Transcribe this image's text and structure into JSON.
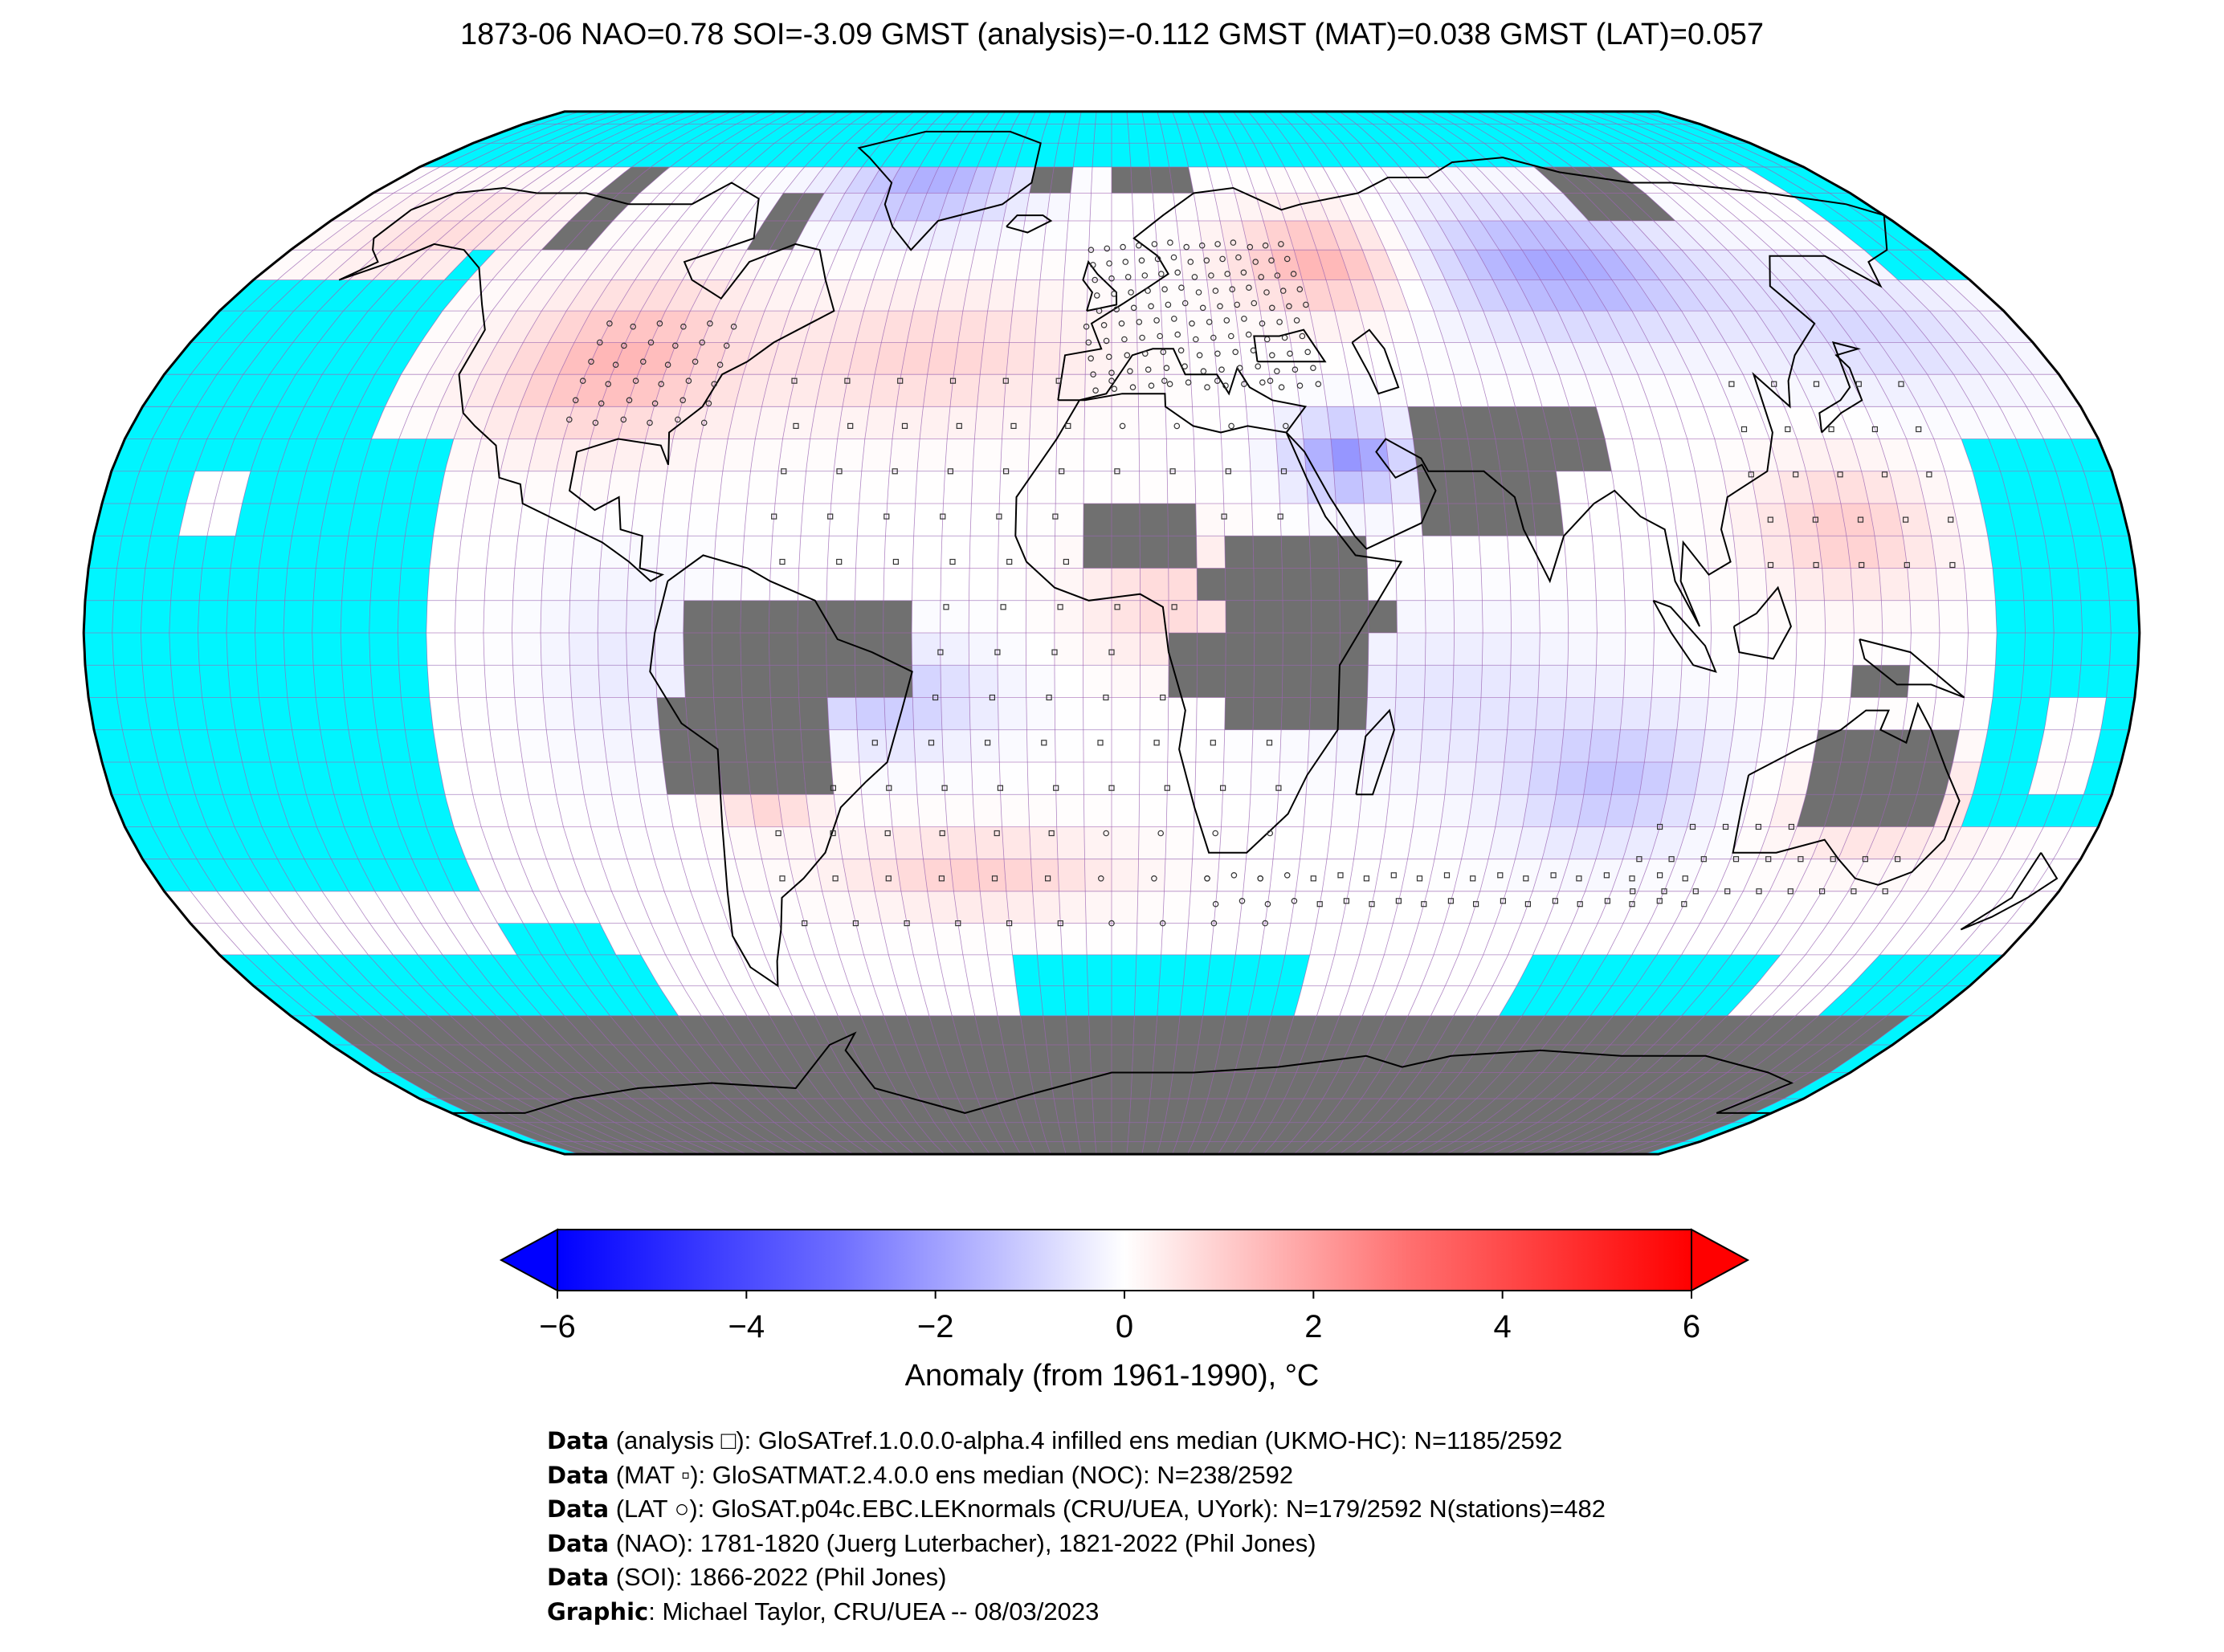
{
  "title": "1873-06 NAO=0.78 SOI=-3.09 GMST (analysis)=-0.112 GMST (MAT)=0.038 GMST (LAT)=0.057",
  "colorbar": {
    "label": "Anomaly (from 1961-1990), °C",
    "ticks": [
      "−6",
      "−4",
      "−2",
      "0",
      "2",
      "4",
      "6"
    ],
    "tick_values": [
      -6,
      -4,
      -2,
      0,
      2,
      4,
      6
    ],
    "range": [
      -6,
      6
    ],
    "colors": {
      "low": "#0000ff",
      "mid": "#ffffff",
      "high": "#ff0000"
    }
  },
  "map": {
    "projection": "Robinson",
    "ocean_color": "#00f5ff",
    "missing_color": "#707070",
    "grid_color": "#a060b0",
    "grid_resolution_deg": 5
  },
  "credits": [
    {
      "bold": "Data",
      "text": " (analysis □): GloSATref.1.0.0.0-alpha.4 infilled ens median (UKMO-HC): N=1185/2592"
    },
    {
      "bold": "Data",
      "text": " (MAT ▫): GloSATMAT.2.4.0.0 ens median (NOC): N=238/2592"
    },
    {
      "bold": "Data",
      "text": " (LAT ○): GloSAT.p04c.EBC.LEKnormals (CRU/UEA, UYork): N=179/2592 N(stations)=482"
    },
    {
      "bold": "Data",
      "text": " (NAO): 1781-1820 (Juerg Luterbacher), 1821-2022 (Phil Jones)"
    },
    {
      "bold": "Data",
      "text": " (SOI): 1866-2022 (Phil Jones)"
    },
    {
      "bold": "Graphic",
      "text": ": Michael Taylor, CRU/UEA -- 08/03/2023"
    }
  ]
}
